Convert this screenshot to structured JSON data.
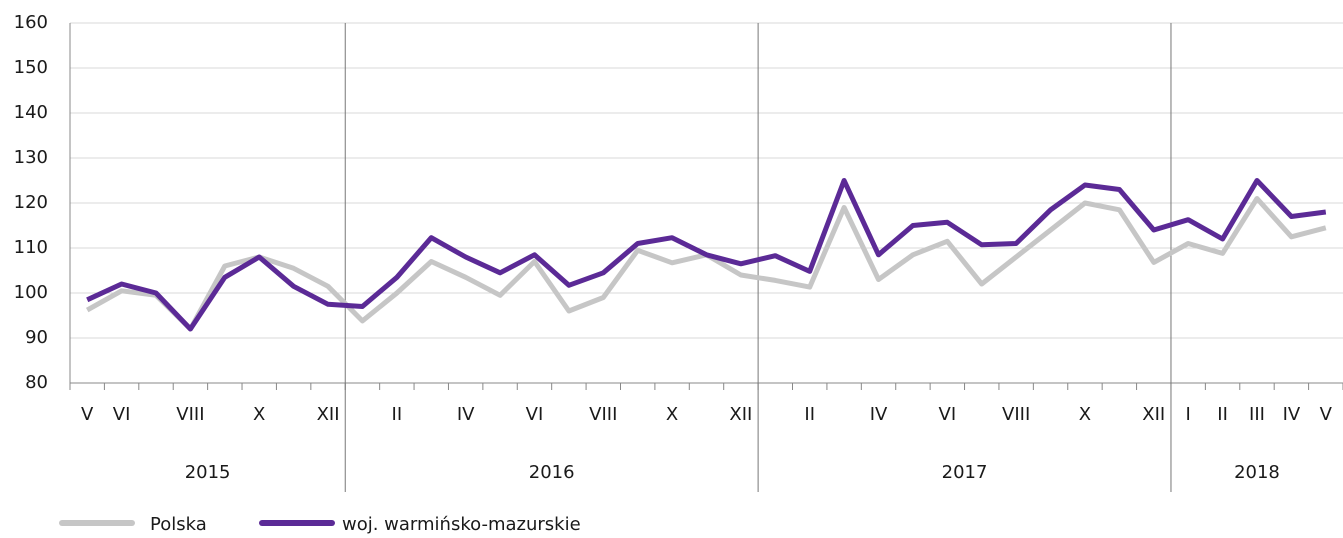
{
  "chart_data": {
    "type": "line",
    "categories": [
      "V",
      "VI",
      null,
      "VIII",
      null,
      "X",
      null,
      "XII",
      null,
      "II",
      null,
      "IV",
      null,
      "VI",
      null,
      "VIII",
      null,
      "X",
      null,
      "XII",
      null,
      "II",
      null,
      "IV",
      null,
      "VI",
      null,
      "VIII",
      null,
      "X",
      null,
      "XII",
      "I",
      "II",
      "III",
      "IV",
      "V"
    ],
    "groups": [
      {
        "label": "2015",
        "size": 8
      },
      {
        "label": "2016",
        "size": 12
      },
      {
        "label": "2017",
        "size": 12
      },
      {
        "label": "2018",
        "size": 5
      }
    ],
    "series": [
      {
        "name": "Polska",
        "color": "#c6c6c6",
        "values": [
          96.2,
          100.5,
          99.5,
          92,
          106,
          108,
          105.5,
          101.5,
          93.8,
          100,
          107,
          103.5,
          99.5,
          107,
          96,
          99,
          109.5,
          106.7,
          108.5,
          104,
          102.8,
          101.3,
          119,
          103,
          108.5,
          111.5,
          102,
          108,
          114,
          120,
          118.5,
          106.8,
          111,
          108.8,
          121,
          112.5,
          114.5
        ]
      },
      {
        "name": "woj. warmińsko-mazurskie",
        "color": "#5b2a96",
        "values": [
          98.5,
          102,
          100,
          92,
          103.5,
          108,
          101.5,
          97.5,
          97,
          103.5,
          112.3,
          108,
          104.5,
          108.5,
          101.7,
          104.5,
          111,
          112.3,
          108.5,
          106.5,
          108.3,
          104.8,
          125,
          108.5,
          115,
          115.7,
          110.7,
          111,
          118.5,
          124,
          123,
          114,
          116.3,
          112,
          125,
          117,
          118
        ]
      }
    ],
    "ylim": [
      80,
      160
    ],
    "yticks": [
      80,
      90,
      100,
      110,
      120,
      130,
      140,
      150,
      160
    ],
    "grid": true
  }
}
